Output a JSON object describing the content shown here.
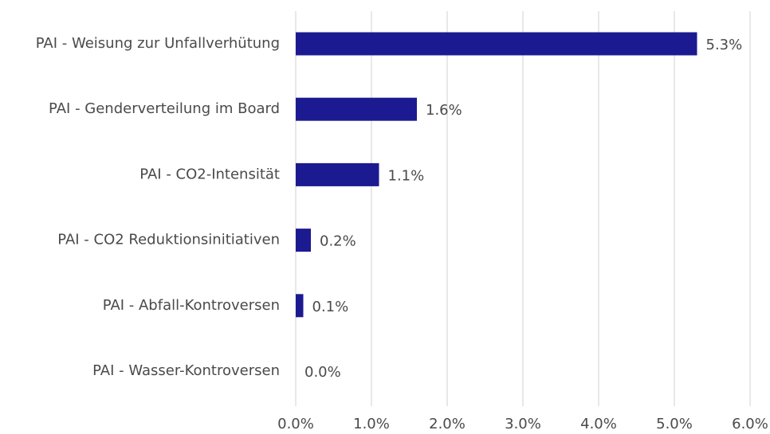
{
  "chart_data": {
    "type": "barh",
    "categories": [
      "PAI - Weisung zur Unfallverhütung",
      "PAI - Genderverteilung im Board",
      "PAI - CO2-Intensität",
      "PAI - CO2 Reduktionsinitiativen",
      "PAI - Abfall-Kontroversen",
      "PAI - Wasser-Kontroversen"
    ],
    "values": [
      5.3,
      1.6,
      1.1,
      0.2,
      0.1,
      0.0
    ],
    "value_labels": [
      "5.3%",
      "1.6%",
      "1.1%",
      "0.2%",
      "0.1%",
      "0.0%"
    ],
    "color": "#1c1a91",
    "xlim": [
      0,
      6
    ],
    "xticks": [
      {
        "value": 0,
        "label": "0.0%"
      },
      {
        "value": 1,
        "label": "1.0%"
      },
      {
        "value": 2,
        "label": "2.0%"
      },
      {
        "value": 3,
        "label": "3.0%"
      },
      {
        "value": 4,
        "label": "4.0%"
      },
      {
        "value": 5,
        "label": "5.0%"
      },
      {
        "value": 6,
        "label": "6.0%"
      }
    ],
    "grid": true
  }
}
